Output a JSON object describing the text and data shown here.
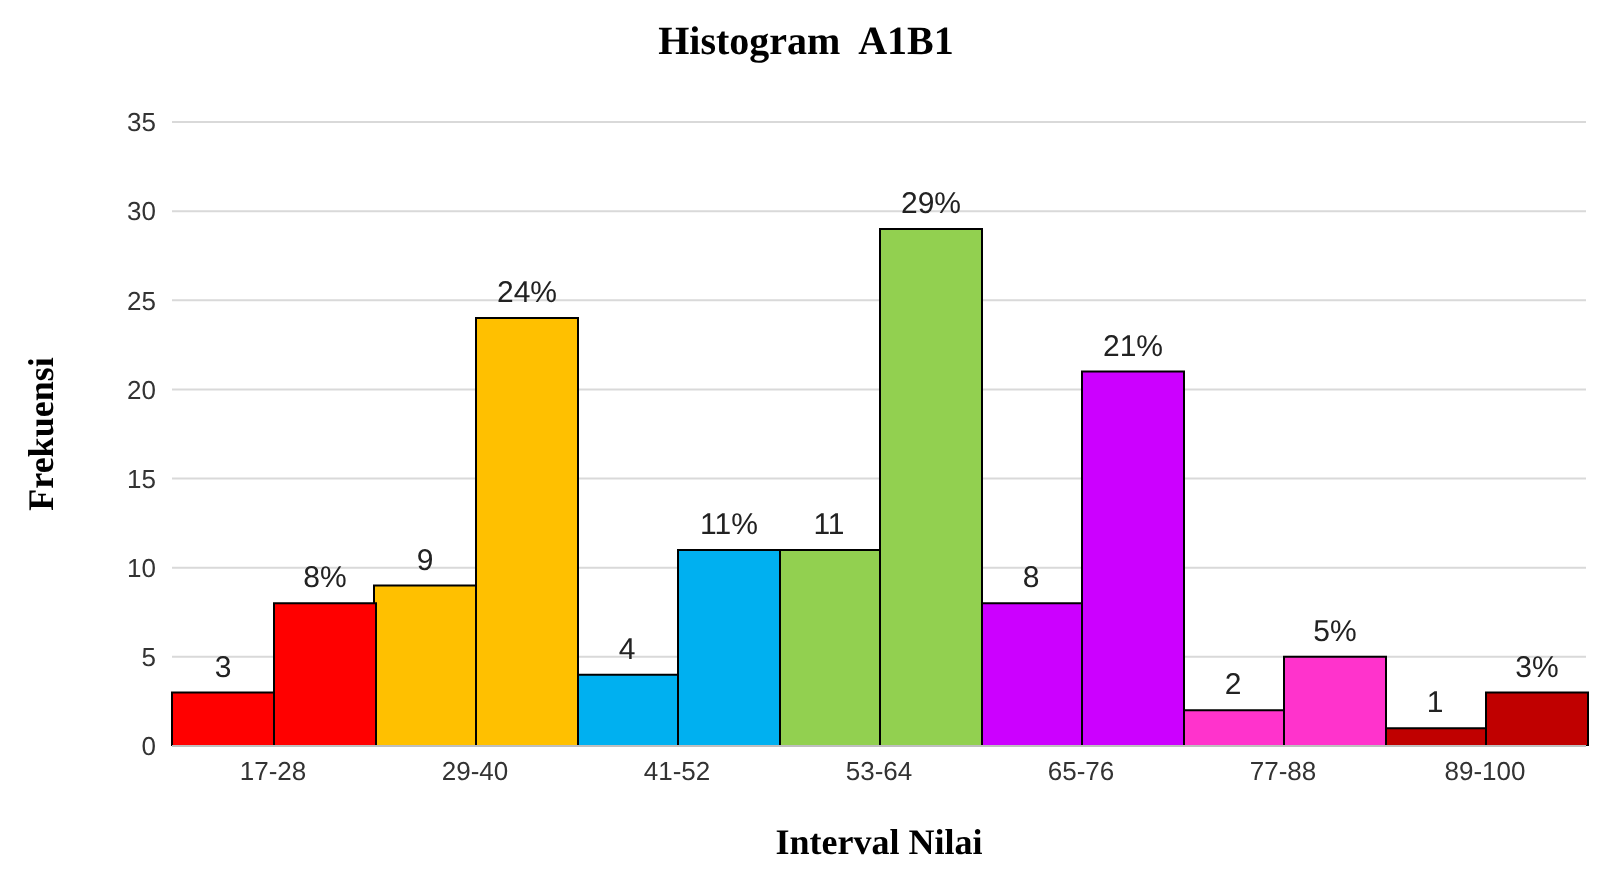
{
  "chart_data": {
    "type": "bar",
    "title": "Histogram  A1B1",
    "xlabel": "Interval Nilai",
    "ylabel": "Frekuensi",
    "categories": [
      "17-28",
      "29-40",
      "41-52",
      "53-64",
      "65-76",
      "77-88",
      "89-100"
    ],
    "series": [
      {
        "colors": [
          "#ff0000",
          "#ffc000",
          "#00b0f0",
          "#92d050",
          "#cc00ff",
          "#ff33cc",
          "#c00000"
        ],
        "values": [
          3,
          9,
          4,
          11,
          8,
          2,
          1
        ],
        "value_labels": [
          "3",
          "9",
          "4",
          "11",
          "8",
          "2",
          "1"
        ]
      },
      {
        "colors": [
          "#ff0000",
          "#ffc000",
          "#00b0f0",
          "#92d050",
          "#cc00ff",
          "#ff33cc",
          "#c00000"
        ],
        "values": [
          8,
          24,
          11,
          29,
          21,
          5,
          3
        ],
        "value_labels": [
          "8%",
          "24%",
          "11%",
          "29%",
          "21%",
          "5%",
          "3%"
        ]
      }
    ],
    "ylim": [
      0,
      35
    ],
    "yticks": [
      0,
      5,
      10,
      15,
      20,
      25,
      30,
      35
    ],
    "grid": "y",
    "legend": false
  }
}
